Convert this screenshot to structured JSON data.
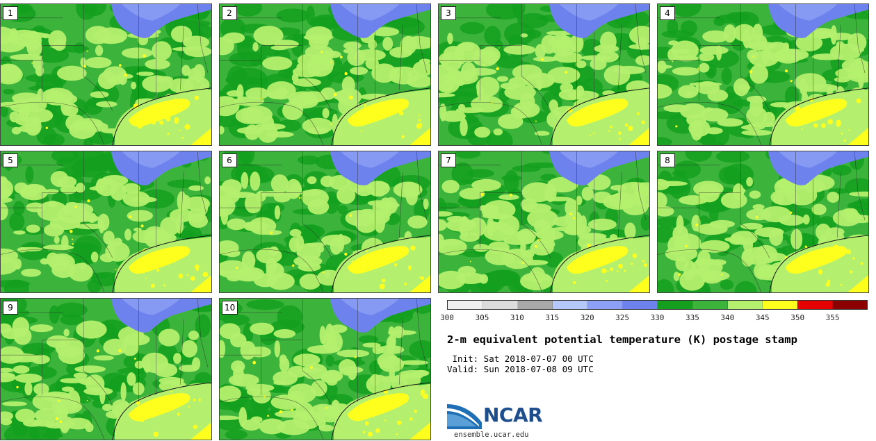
{
  "title": "2-m equivalent potential temperature (K) postage stamp",
  "init": " Init: Sat 2018-07-07 00 UTC",
  "valid": "Valid: Sun 2018-07-08 09 UTC",
  "members": [
    "1",
    "2",
    "3",
    "4",
    "5",
    "6",
    "7",
    "8",
    "9",
    "10"
  ],
  "colorbar": {
    "ticks": [
      "300",
      "305",
      "310",
      "315",
      "320",
      "325",
      "330",
      "335",
      "340",
      "345",
      "350",
      "355"
    ],
    "colors": [
      "#f0f0f0",
      "#dcdcdc",
      "#a8a8a8",
      "#b4c8fa",
      "#8ca0f5",
      "#6e82ee",
      "#14a01e",
      "#3cb43c",
      "#b4f06e",
      "#ffff1e",
      "#e60000",
      "#8c0000"
    ]
  },
  "map_colors": {
    "green_dark": "#14a01e",
    "green": "#3cb43c",
    "green_light": "#b4f06e",
    "yellow": "#ffff1e",
    "blue": "#6e82ee",
    "blue_light": "#8ca0f5",
    "border": "#2a2a2a"
  },
  "logo": {
    "text": "NCAR",
    "url": "ensemble.ucar.edu"
  }
}
